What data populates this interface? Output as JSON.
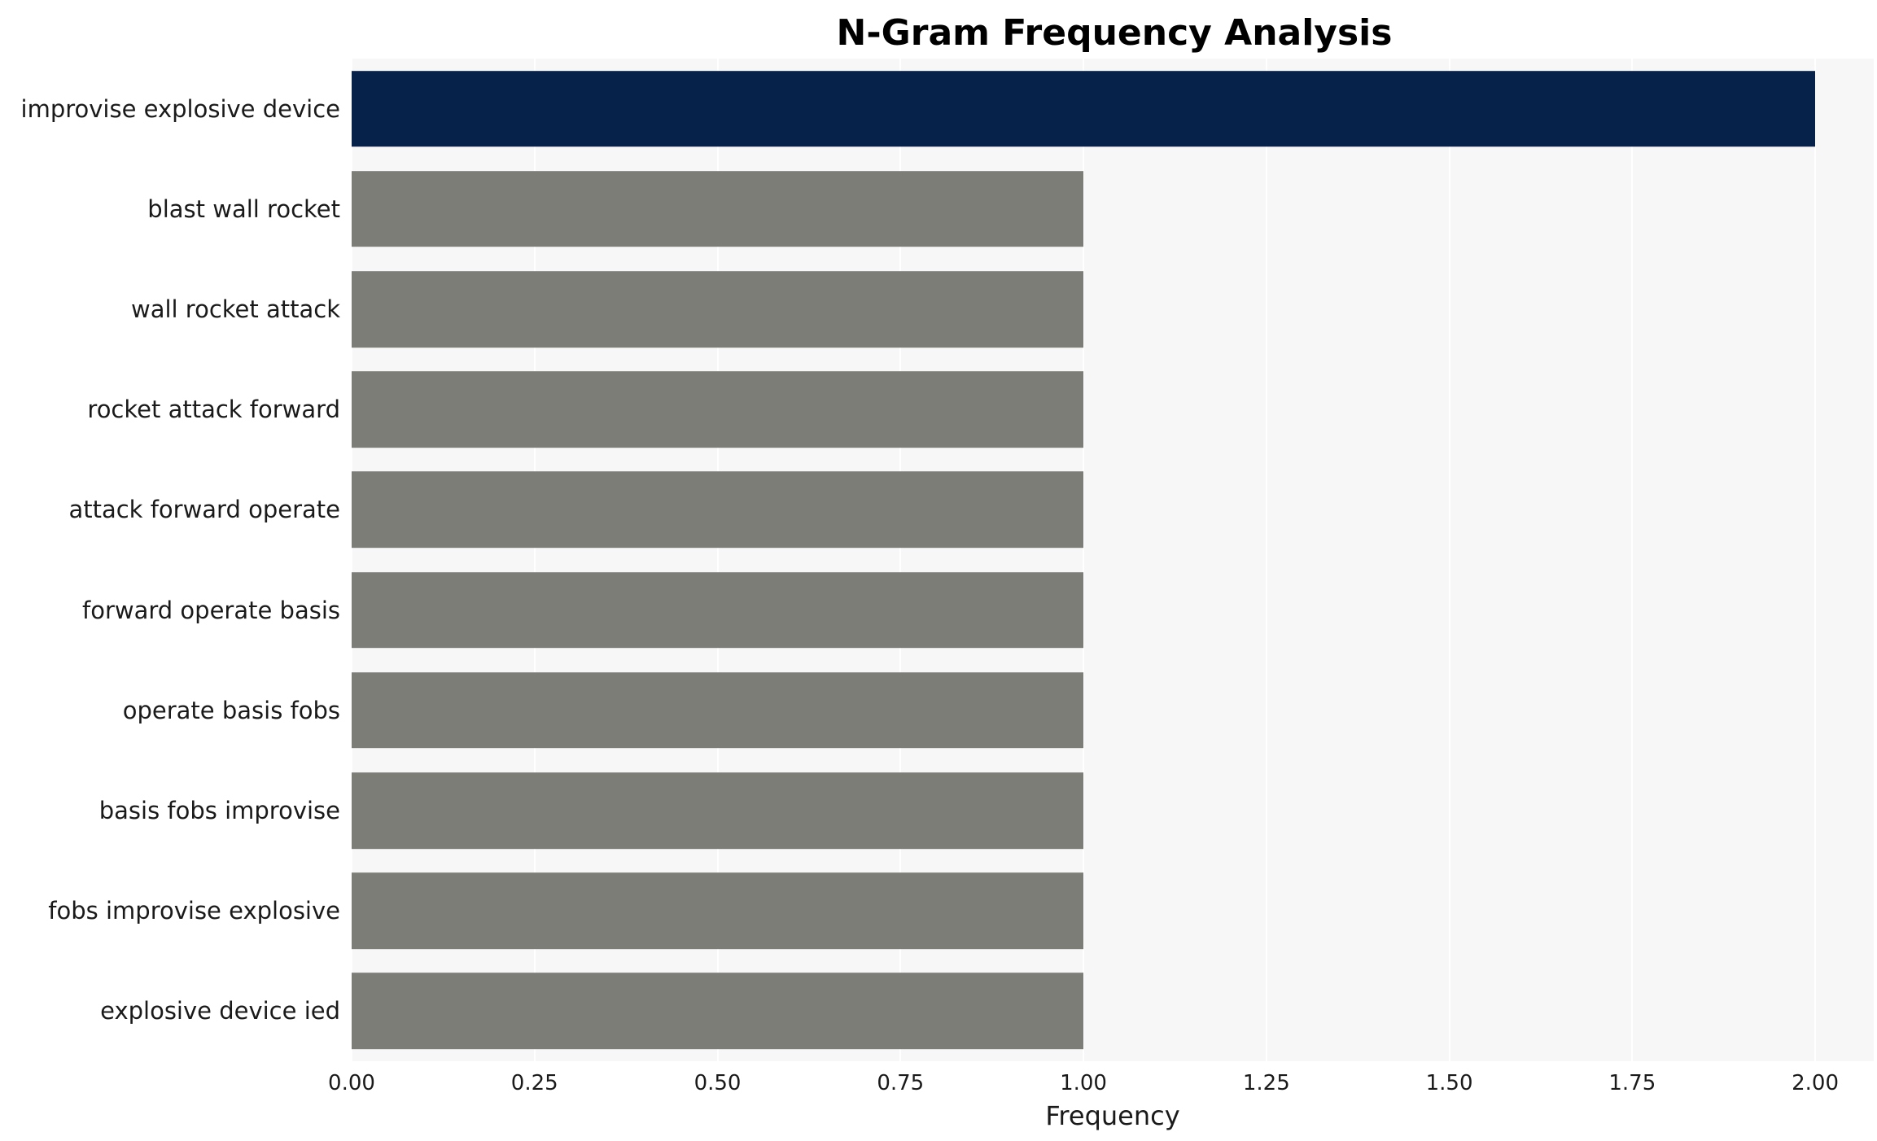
{
  "title": "N-Gram Frequency Analysis",
  "chart_data": {
    "type": "bar",
    "orientation": "horizontal",
    "title": "N-Gram Frequency Analysis",
    "xlabel": "Frequency",
    "ylabel": "",
    "categories": [
      "improvise explosive device",
      "blast wall rocket",
      "wall rocket attack",
      "rocket attack forward",
      "attack forward operate",
      "forward operate basis",
      "operate basis fobs",
      "basis fobs improvise",
      "fobs improvise explosive",
      "explosive device ied"
    ],
    "values": [
      2,
      1,
      1,
      1,
      1,
      1,
      1,
      1,
      1,
      1
    ],
    "bar_colors": [
      "#06224b",
      "#7d7d78",
      "#7d7d78",
      "#7d7d78",
      "#7d7d78",
      "#7d7d78",
      "#7d7d78",
      "#7d7d78",
      "#7d7d78",
      "#7d7d78"
    ],
    "xlim": [
      0,
      2.08
    ],
    "xticks": [
      0,
      0.25,
      0.5,
      0.75,
      1,
      1.25,
      1.5,
      1.75,
      2
    ],
    "xtick_labels": [
      "0.00",
      "0.25",
      "0.50",
      "0.75",
      "1.00",
      "1.25",
      "1.50",
      "1.75",
      "2.00"
    ],
    "grid": "vertical-white-on-lightgray",
    "legend": "none",
    "plot_background": "#f7f7f7",
    "gridline_color": "#ffffff"
  }
}
